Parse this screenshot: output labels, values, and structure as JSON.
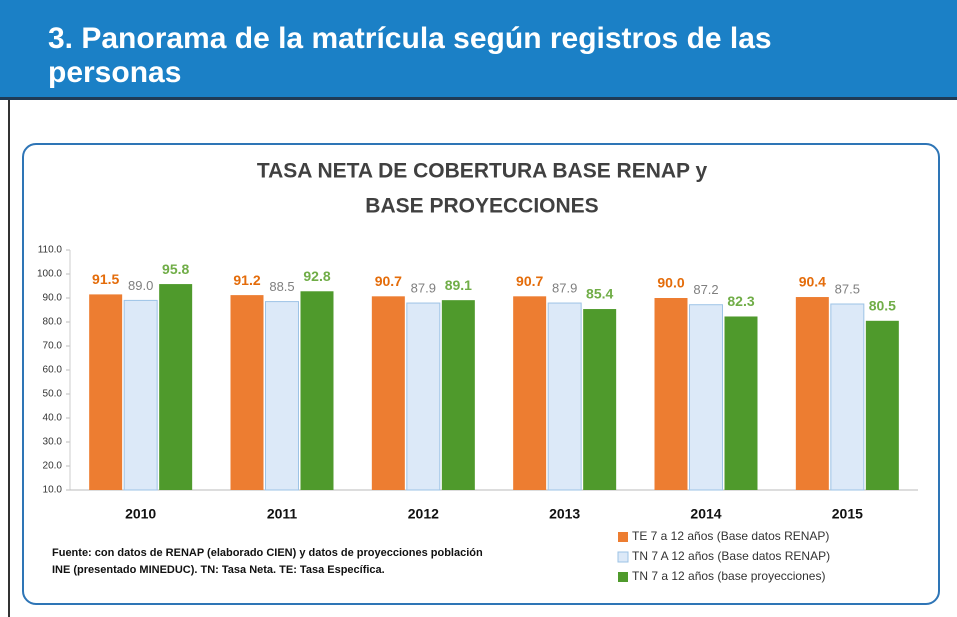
{
  "header": {
    "title": "3. Panorama de la matrícula según registros de las personas"
  },
  "chart_data": {
    "type": "bar",
    "title": [
      "TASA NETA DE COBERTURA  BASE RENAP y",
      "BASE PROYECCIONES"
    ],
    "categories": [
      "2010",
      "2011",
      "2012",
      "2013",
      "2014",
      "2015"
    ],
    "series": [
      {
        "name": "TE 7 a 12 años (Base datos  RENAP)",
        "color": "#ed7d31",
        "label_color": "#e46c0a",
        "values": [
          91.5,
          91.2,
          90.7,
          90.7,
          90.0,
          90.4
        ],
        "value_labels": [
          "91.5",
          "91.2",
          "90.7",
          "90.7",
          "90.0",
          "90.4"
        ]
      },
      {
        "name": "TN 7 A 12 años (Base datos RENAP)",
        "color": "#dce9f8",
        "label_color": "#7f7f7f",
        "values": [
          89.0,
          88.5,
          87.9,
          87.9,
          87.2,
          87.5
        ],
        "value_labels": [
          "89.0",
          "88.5",
          "87.9",
          "87.9",
          "87.2",
          "87.5"
        ]
      },
      {
        "name": "TN  7 a 12 años (base proyecciones)",
        "color": "#4f9a2c",
        "label_color": "#70ad47",
        "values": [
          95.8,
          92.8,
          89.1,
          85.4,
          82.3,
          80.5
        ],
        "value_labels": [
          "95.8",
          "92.8",
          "89.1",
          "85.4",
          "82.3",
          "80.5"
        ]
      }
    ],
    "ylim": [
      10,
      110
    ],
    "yticks": [
      {
        "value": 10,
        "label": "10.0"
      },
      {
        "value": 20,
        "label": "20.0"
      },
      {
        "value": 30,
        "label": "30.0"
      },
      {
        "value": 40,
        "label": "40.0"
      },
      {
        "value": 50,
        "label": "50.0"
      },
      {
        "value": 60,
        "label": "60.0"
      },
      {
        "value": 70,
        "label": "70.0"
      },
      {
        "value": 80,
        "label": "80.0"
      },
      {
        "value": 90,
        "label": "90.0"
      },
      {
        "value": 100,
        "label": "100.0"
      },
      {
        "value": 110,
        "label": "110.0"
      }
    ],
    "grid": false
  },
  "source": "Fuente: con datos de RENAP (elaborado CIEN) y datos de proyecciones población INE (presentado MINEDUC).  TN: Tasa Neta. TE: Tasa Específica."
}
